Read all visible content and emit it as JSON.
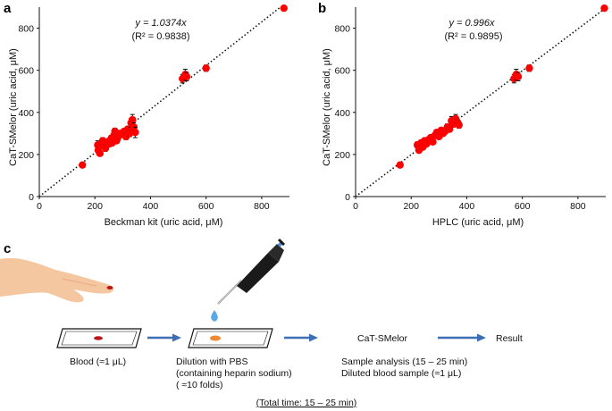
{
  "panels": {
    "a": "a",
    "b": "b",
    "c": "c"
  },
  "chart_data": [
    {
      "panel": "a",
      "type": "scatter",
      "xlabel": "Beckman kit (uric acid, μM)",
      "ylabel": "CaT-SMelor (uric acid, μM)",
      "xlim": [
        0,
        900
      ],
      "ylim": [
        0,
        900
      ],
      "xticks": [
        "0",
        "200",
        "400",
        "600",
        "800"
      ],
      "yticks": [
        "0",
        "200",
        "400",
        "600",
        "800"
      ],
      "annotation_eq": "y = 1.0374x",
      "annotation_r2": "(R² = 0.9838)",
      "fit": {
        "slope": 1.0374,
        "style": "dotted"
      },
      "points": [
        {
          "x": 155,
          "y": 150,
          "err": 0
        },
        {
          "x": 210,
          "y": 245,
          "err": 20
        },
        {
          "x": 212,
          "y": 220,
          "err": 15
        },
        {
          "x": 218,
          "y": 205,
          "err": 10
        },
        {
          "x": 222,
          "y": 250,
          "err": 12
        },
        {
          "x": 228,
          "y": 265,
          "err": 15
        },
        {
          "x": 232,
          "y": 240,
          "err": 10
        },
        {
          "x": 238,
          "y": 230,
          "err": 15
        },
        {
          "x": 245,
          "y": 260,
          "err": 12
        },
        {
          "x": 252,
          "y": 250,
          "err": 10
        },
        {
          "x": 258,
          "y": 275,
          "err": 15
        },
        {
          "x": 262,
          "y": 255,
          "err": 12
        },
        {
          "x": 268,
          "y": 290,
          "err": 10
        },
        {
          "x": 272,
          "y": 310,
          "err": 15
        },
        {
          "x": 278,
          "y": 265,
          "err": 12
        },
        {
          "x": 282,
          "y": 280,
          "err": 10
        },
        {
          "x": 290,
          "y": 300,
          "err": 10
        },
        {
          "x": 298,
          "y": 295,
          "err": 12
        },
        {
          "x": 305,
          "y": 310,
          "err": 10
        },
        {
          "x": 312,
          "y": 285,
          "err": 15
        },
        {
          "x": 318,
          "y": 320,
          "err": 12
        },
        {
          "x": 325,
          "y": 300,
          "err": 15
        },
        {
          "x": 330,
          "y": 350,
          "err": 20
        },
        {
          "x": 335,
          "y": 365,
          "err": 25
        },
        {
          "x": 340,
          "y": 330,
          "err": 20
        },
        {
          "x": 345,
          "y": 305,
          "err": 25
        },
        {
          "x": 515,
          "y": 560,
          "err": 20
        },
        {
          "x": 525,
          "y": 580,
          "err": 25
        },
        {
          "x": 530,
          "y": 570,
          "err": 20
        },
        {
          "x": 600,
          "y": 610,
          "err": 15
        },
        {
          "x": 880,
          "y": 895,
          "err": 0
        }
      ]
    },
    {
      "panel": "b",
      "type": "scatter",
      "xlabel": "HPLC (uric acid, μM)",
      "ylabel": "CaT-SMelor (uric acid, μM)",
      "xlim": [
        0,
        900
      ],
      "ylim": [
        0,
        900
      ],
      "xticks": [
        "0",
        "200",
        "400",
        "600",
        "800"
      ],
      "yticks": [
        "0",
        "200",
        "400",
        "600",
        "800"
      ],
      "annotation_eq": "y = 0.996x",
      "annotation_r2": "(R² = 0.9895)",
      "fit": {
        "slope": 0.996,
        "style": "dotted"
      },
      "points": [
        {
          "x": 160,
          "y": 150,
          "err": 0
        },
        {
          "x": 222,
          "y": 245,
          "err": 15
        },
        {
          "x": 228,
          "y": 220,
          "err": 10
        },
        {
          "x": 235,
          "y": 255,
          "err": 12
        },
        {
          "x": 242,
          "y": 235,
          "err": 10
        },
        {
          "x": 248,
          "y": 265,
          "err": 12
        },
        {
          "x": 255,
          "y": 250,
          "err": 10
        },
        {
          "x": 262,
          "y": 270,
          "err": 12
        },
        {
          "x": 270,
          "y": 280,
          "err": 10
        },
        {
          "x": 278,
          "y": 260,
          "err": 12
        },
        {
          "x": 285,
          "y": 290,
          "err": 10
        },
        {
          "x": 292,
          "y": 305,
          "err": 12
        },
        {
          "x": 300,
          "y": 285,
          "err": 10
        },
        {
          "x": 308,
          "y": 315,
          "err": 12
        },
        {
          "x": 315,
          "y": 300,
          "err": 10
        },
        {
          "x": 322,
          "y": 310,
          "err": 12
        },
        {
          "x": 330,
          "y": 330,
          "err": 15
        },
        {
          "x": 338,
          "y": 320,
          "err": 12
        },
        {
          "x": 345,
          "y": 360,
          "err": 20
        },
        {
          "x": 352,
          "y": 345,
          "err": 15
        },
        {
          "x": 360,
          "y": 370,
          "err": 20
        },
        {
          "x": 368,
          "y": 350,
          "err": 15
        },
        {
          "x": 372,
          "y": 340,
          "err": 15
        },
        {
          "x": 570,
          "y": 560,
          "err": 20
        },
        {
          "x": 578,
          "y": 580,
          "err": 25
        },
        {
          "x": 585,
          "y": 570,
          "err": 20
        },
        {
          "x": 625,
          "y": 610,
          "err": 15
        },
        {
          "x": 895,
          "y": 895,
          "err": 0
        }
      ]
    }
  ],
  "workflow": {
    "step1_label": "Blood (≈1 μL)",
    "step2_line1": "Dilution with PBS",
    "step2_line2": "(containing heparin sodium)",
    "step2_line3": "( ≈10 folds)",
    "step3_title": "CaT-SMelor",
    "step3_line1": "Sample analysis (15 – 25 min)",
    "step3_line2": "Diluted blood sample (≈1 μL)",
    "step4_label": "Result",
    "total_time": "(Total time: 15 – 25 min)",
    "colors": {
      "arrow": "#3d6fb6",
      "blood_drop": "#c0141c",
      "diluted_sample": "#f08a30",
      "water_drop": "#5aa9e6",
      "skin": "#f5c7a0",
      "marker": "#ff0000"
    }
  }
}
